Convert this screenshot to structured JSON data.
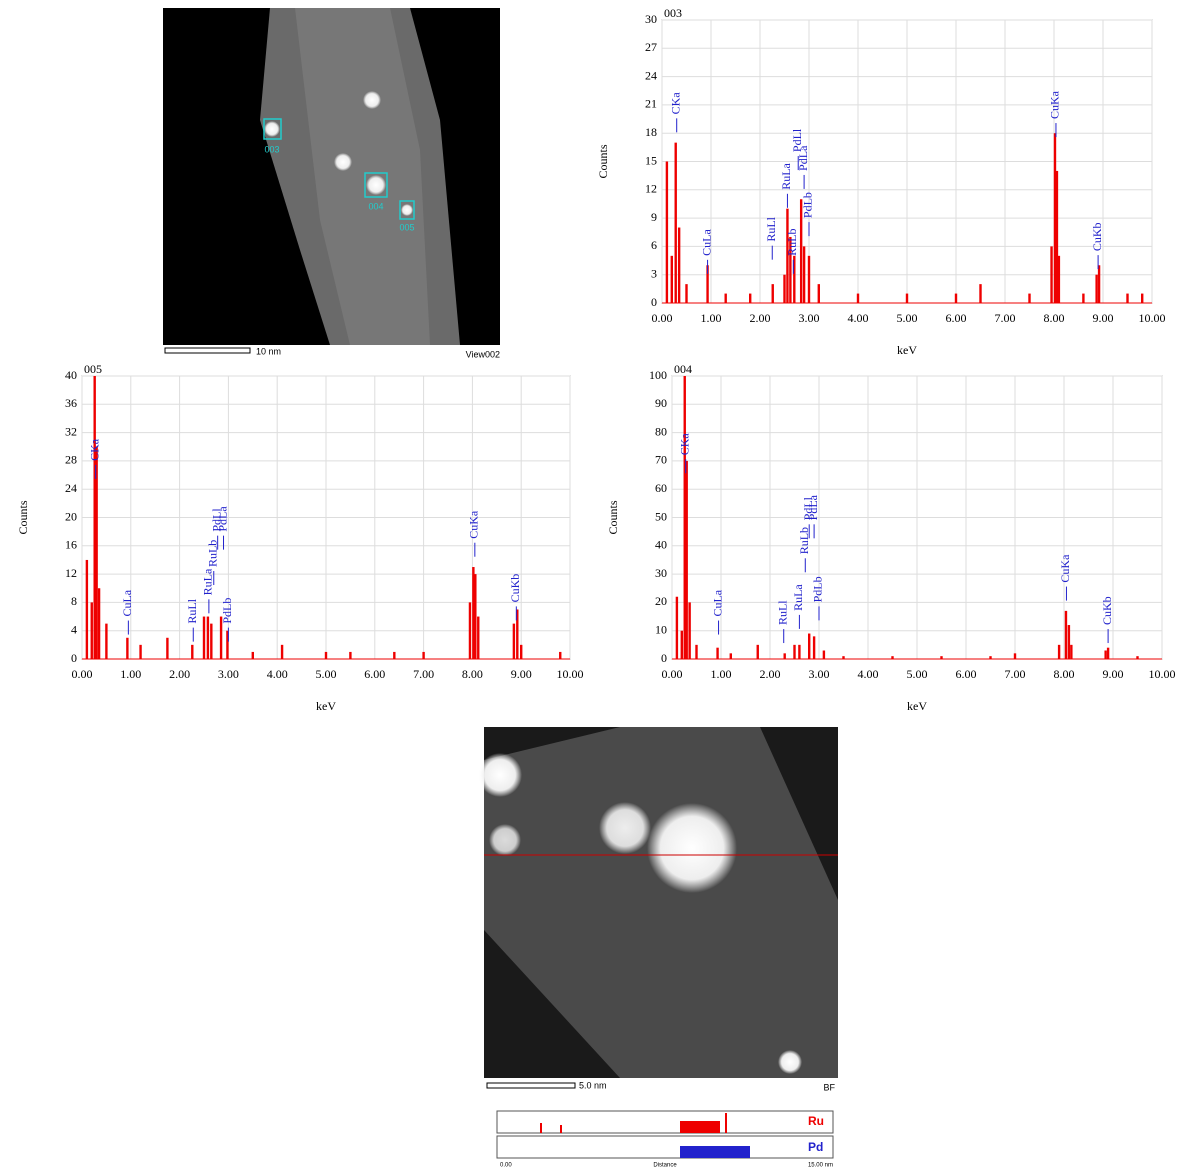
{
  "chart_data": [
    {
      "type": "bar",
      "title": "003",
      "x_label": "keV",
      "y_label": "Counts",
      "color": "#ee0000",
      "grid": true,
      "xlim": [
        0,
        10
      ],
      "ylim": [
        0,
        30
      ],
      "xticks": [
        {
          "value": 0,
          "label": "0.00"
        },
        {
          "value": 1,
          "label": "1.00"
        },
        {
          "value": 2,
          "label": "2.00"
        },
        {
          "value": 3,
          "label": "3.00"
        },
        {
          "value": 4,
          "label": "4.00"
        },
        {
          "value": 5,
          "label": "5.00"
        },
        {
          "value": 6,
          "label": "6.00"
        },
        {
          "value": 7,
          "label": "7.00"
        },
        {
          "value": 8,
          "label": "8.00"
        },
        {
          "value": 9,
          "label": "9.00"
        },
        {
          "value": 10,
          "label": "10.00"
        }
      ],
      "yticks": [
        0,
        3,
        6,
        9,
        12,
        15,
        18,
        21,
        24,
        27,
        30
      ],
      "x": [
        0.1,
        0.2,
        0.28,
        0.35,
        0.5,
        0.93,
        1.3,
        1.8,
        2.26,
        2.5,
        2.56,
        2.62,
        2.7,
        2.84,
        2.9,
        3.0,
        3.2,
        4.0,
        5.0,
        6.0,
        6.5,
        7.5,
        7.95,
        8.02,
        8.06,
        8.1,
        8.6,
        8.87,
        8.92,
        9.5,
        9.8
      ],
      "values": [
        15,
        5,
        17,
        8,
        2,
        4,
        1,
        1,
        2,
        3,
        10,
        7,
        5,
        11,
        6,
        5,
        2,
        1,
        1,
        1,
        2,
        1,
        6,
        18,
        14,
        5,
        1,
        3,
        4,
        1,
        1
      ],
      "annotations": [
        {
          "text": "CKa",
          "x": 0.3,
          "y": 20
        },
        {
          "text": "CuLa",
          "x": 0.93,
          "y": 5
        },
        {
          "text": "RuLl",
          "x": 2.25,
          "y": 6.5
        },
        {
          "text": "RuLa",
          "x": 2.56,
          "y": 12
        },
        {
          "text": "PdLl",
          "x": 2.78,
          "y": 16
        },
        {
          "text": "RuLb",
          "x": 2.68,
          "y": 5
        },
        {
          "text": "PdLa",
          "x": 2.9,
          "y": 14
        },
        {
          "text": "PdLb",
          "x": 3.0,
          "y": 9
        },
        {
          "text": "CuKa",
          "x": 8.04,
          "y": 19.5
        },
        {
          "text": "CuKb",
          "x": 8.9,
          "y": 5.5
        }
      ]
    },
    {
      "type": "bar",
      "title": "005",
      "x_label": "keV",
      "y_label": "Counts",
      "color": "#ee0000",
      "grid": true,
      "xlim": [
        0,
        10
      ],
      "ylim": [
        0,
        40
      ],
      "xticks": [
        {
          "value": 0,
          "label": "0.00"
        },
        {
          "value": 1,
          "label": "1.00"
        },
        {
          "value": 2,
          "label": "2.00"
        },
        {
          "value": 3,
          "label": "3.00"
        },
        {
          "value": 4,
          "label": "4.00"
        },
        {
          "value": 5,
          "label": "5.00"
        },
        {
          "value": 6,
          "label": "6.00"
        },
        {
          "value": 7,
          "label": "7.00"
        },
        {
          "value": 8,
          "label": "8.00"
        },
        {
          "value": 9,
          "label": "9.00"
        },
        {
          "value": 10,
          "label": "10.00"
        }
      ],
      "yticks": [
        0,
        4,
        8,
        12,
        16,
        20,
        24,
        28,
        32,
        36,
        40
      ],
      "x": [
        0.1,
        0.2,
        0.26,
        0.3,
        0.35,
        0.5,
        0.93,
        1.2,
        1.75,
        2.26,
        2.5,
        2.58,
        2.65,
        2.85,
        2.98,
        3.5,
        4.1,
        5.0,
        5.5,
        6.4,
        7.0,
        7.95,
        8.02,
        8.06,
        8.12,
        8.85,
        8.92,
        9.0,
        9.8
      ],
      "values": [
        14,
        8,
        40,
        30,
        10,
        5,
        3,
        2,
        3,
        2,
        6,
        6,
        5,
        6,
        4,
        1,
        2,
        1,
        1,
        1,
        1,
        8,
        13,
        12,
        6,
        5,
        7,
        2,
        1
      ],
      "annotations": [
        {
          "text": "CKa",
          "x": 0.28,
          "y": 28
        },
        {
          "text": "CuLa",
          "x": 0.95,
          "y": 6
        },
        {
          "text": "RuLl",
          "x": 2.28,
          "y": 5
        },
        {
          "text": "RuLa",
          "x": 2.6,
          "y": 9
        },
        {
          "text": "RuLb",
          "x": 2.7,
          "y": 13
        },
        {
          "text": "PdLl",
          "x": 2.78,
          "y": 18
        },
        {
          "text": "PdLa",
          "x": 2.9,
          "y": 18
        },
        {
          "text": "PdLb",
          "x": 3.0,
          "y": 5
        },
        {
          "text": "CuKa",
          "x": 8.05,
          "y": 17
        },
        {
          "text": "CuKb",
          "x": 8.9,
          "y": 8
        }
      ]
    },
    {
      "type": "bar",
      "title": "004",
      "x_label": "keV",
      "y_label": "Counts",
      "color": "#ee0000",
      "grid": true,
      "xlim": [
        0,
        10
      ],
      "ylim": [
        0,
        100
      ],
      "xticks": [
        {
          "value": 0,
          "label": "0.00"
        },
        {
          "value": 1,
          "label": "1.00"
        },
        {
          "value": 2,
          "label": "2.00"
        },
        {
          "value": 3,
          "label": "3.00"
        },
        {
          "value": 4,
          "label": "4.00"
        },
        {
          "value": 5,
          "label": "5.00"
        },
        {
          "value": 6,
          "label": "6.00"
        },
        {
          "value": 7,
          "label": "7.00"
        },
        {
          "value": 8,
          "label": "8.00"
        },
        {
          "value": 9,
          "label": "9.00"
        },
        {
          "value": 10,
          "label": "10.00"
        }
      ],
      "yticks": [
        0,
        10,
        20,
        30,
        40,
        50,
        60,
        70,
        80,
        90,
        100
      ],
      "x": [
        0.1,
        0.2,
        0.26,
        0.3,
        0.36,
        0.5,
        0.93,
        1.2,
        1.75,
        2.3,
        2.5,
        2.6,
        2.8,
        2.9,
        3.1,
        3.5,
        4.5,
        5.5,
        6.5,
        7.0,
        7.9,
        8.04,
        8.1,
        8.15,
        8.85,
        8.9,
        9.5
      ],
      "values": [
        22,
        10,
        100,
        70,
        20,
        5,
        4,
        2,
        5,
        2,
        5,
        5,
        9,
        8,
        3,
        1,
        1,
        1,
        1,
        2,
        5,
        17,
        12,
        5,
        3,
        4,
        1
      ],
      "annotations": [
        {
          "text": "CKa",
          "x": 0.28,
          "y": 72
        },
        {
          "text": "CuLa",
          "x": 0.95,
          "y": 15
        },
        {
          "text": "RuLl",
          "x": 2.28,
          "y": 12
        },
        {
          "text": "RuLa",
          "x": 2.6,
          "y": 17
        },
        {
          "text": "RuLb",
          "x": 2.72,
          "y": 37
        },
        {
          "text": "PdLl",
          "x": 2.8,
          "y": 49
        },
        {
          "text": "PdLa",
          "x": 2.9,
          "y": 49
        },
        {
          "text": "PdLb",
          "x": 3.0,
          "y": 20
        },
        {
          "text": "CuKa",
          "x": 8.05,
          "y": 27
        },
        {
          "text": "CuKb",
          "x": 8.9,
          "y": 12
        }
      ]
    }
  ],
  "images": [
    {
      "labels": [
        "003",
        "004",
        "005"
      ],
      "scale_bar": "10 nm",
      "view": "View002"
    },
    {
      "scale_bar": "5.0 nm",
      "mode": "BF",
      "profiles": [
        "Ru",
        "Pd"
      ],
      "axis": [
        "0.00",
        "Distance",
        "15.00 nm"
      ]
    }
  ]
}
